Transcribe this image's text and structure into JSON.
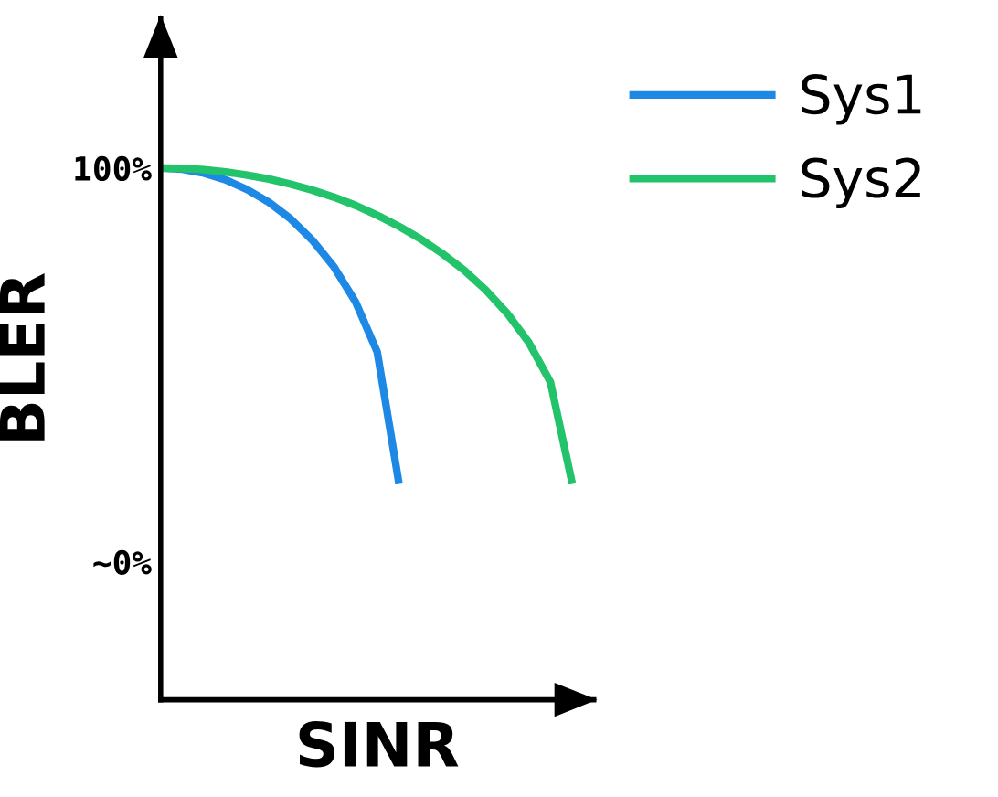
{
  "chart_data": {
    "type": "line",
    "xlabel": "SINR",
    "ylabel": "BLER",
    "categories": [
      null,
      null,
      null,
      null,
      null,
      null,
      null,
      null,
      null,
      null,
      null,
      null,
      null,
      null,
      null,
      null,
      null,
      null,
      null,
      null,
      null
    ],
    "ylim": [
      -35,
      138
    ],
    "yticks": [
      {
        "value": 0,
        "label": "~0%"
      },
      {
        "value": 100,
        "label": "100%"
      }
    ],
    "tick_labels": "y",
    "grid": false,
    "legend": "top right",
    "marker": "none",
    "line_style": "solid",
    "series": [
      {
        "name": "Sys1",
        "color": "#1e88e5",
        "values": [
          100,
          99.7,
          98.7,
          97.0,
          94.5,
          91.3,
          87.1,
          81.7,
          74.9,
          66.0,
          53.3,
          20,
          null,
          null,
          null,
          null,
          null,
          null,
          null,
          null,
          null
        ]
      },
      {
        "name": "Sys2",
        "color": "#22c36a",
        "values": [
          100,
          99.9,
          99.6,
          99.0,
          98.2,
          97.2,
          95.9,
          94.4,
          92.6,
          90.5,
          88.0,
          85.2,
          82.0,
          78.3,
          74.1,
          69.1,
          63.1,
          55.7,
          45.6,
          20,
          null
        ]
      }
    ]
  }
}
